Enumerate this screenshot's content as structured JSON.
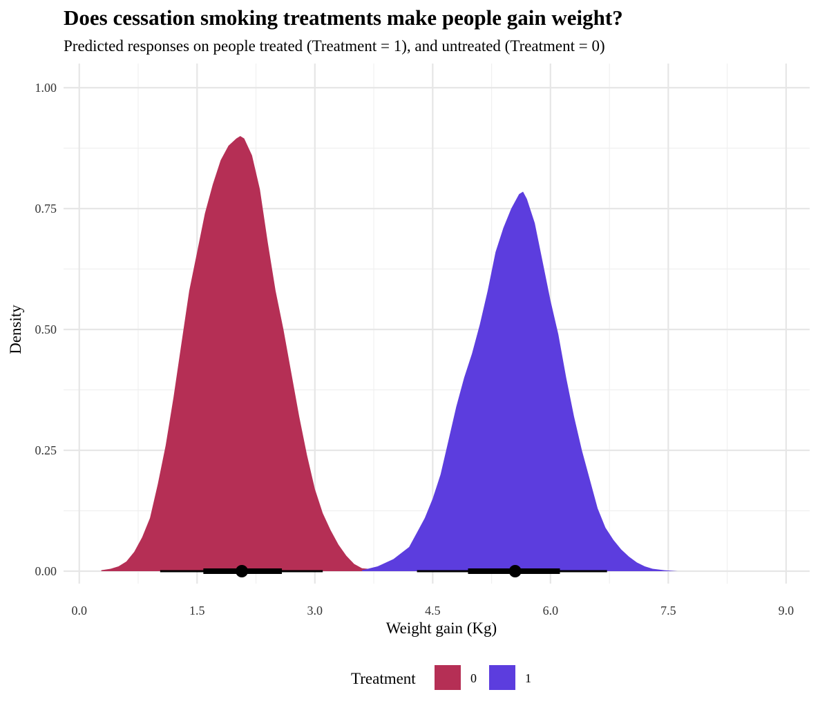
{
  "chart_data": {
    "type": "area",
    "title": "Does cessation smoking treatments make people gain weight?",
    "subtitle": "Predicted responses on people treated (Treatment = 1), and untreated (Treatment = 0)",
    "xlabel": "Weight gain (Kg)",
    "ylabel": "Density",
    "xlim": [
      -0.2,
      9.3
    ],
    "ylim": [
      0,
      1.0
    ],
    "x_ticks": [
      0.0,
      1.5,
      3.0,
      4.5,
      6.0,
      7.5,
      9.0
    ],
    "x_tick_labels": [
      "0.0",
      "1.5",
      "3.0",
      "4.5",
      "6.0",
      "7.5",
      "9.0"
    ],
    "y_ticks": [
      0.0,
      0.25,
      0.5,
      0.75,
      1.0
    ],
    "y_tick_labels": [
      "0.00",
      "0.25",
      "0.50",
      "0.75",
      "1.00"
    ],
    "grid": true,
    "legend": {
      "title": "Treatment",
      "position": "bottom",
      "entries": [
        {
          "label": "0",
          "color": "#B52F55"
        },
        {
          "label": "1",
          "color": "#5C3DDE"
        }
      ]
    },
    "series": [
      {
        "name": "0",
        "color": "#B52F55",
        "points": [
          [
            0.28,
            0.002
          ],
          [
            0.4,
            0.005
          ],
          [
            0.5,
            0.01
          ],
          [
            0.6,
            0.02
          ],
          [
            0.7,
            0.04
          ],
          [
            0.8,
            0.07
          ],
          [
            0.9,
            0.11
          ],
          [
            1.0,
            0.18
          ],
          [
            1.1,
            0.26
          ],
          [
            1.2,
            0.36
          ],
          [
            1.3,
            0.47
          ],
          [
            1.4,
            0.58
          ],
          [
            1.5,
            0.66
          ],
          [
            1.6,
            0.74
          ],
          [
            1.7,
            0.8
          ],
          [
            1.8,
            0.85
          ],
          [
            1.9,
            0.88
          ],
          [
            2.0,
            0.895
          ],
          [
            2.05,
            0.9
          ],
          [
            2.1,
            0.895
          ],
          [
            2.2,
            0.86
          ],
          [
            2.3,
            0.79
          ],
          [
            2.4,
            0.68
          ],
          [
            2.5,
            0.58
          ],
          [
            2.6,
            0.5
          ],
          [
            2.7,
            0.41
          ],
          [
            2.8,
            0.32
          ],
          [
            2.9,
            0.24
          ],
          [
            3.0,
            0.17
          ],
          [
            3.1,
            0.12
          ],
          [
            3.2,
            0.085
          ],
          [
            3.3,
            0.055
          ],
          [
            3.4,
            0.032
          ],
          [
            3.5,
            0.015
          ],
          [
            3.6,
            0.006
          ],
          [
            3.8,
            0.003
          ],
          [
            4.05,
            0.001
          ]
        ],
        "interval": {
          "point": 2.07,
          "inner": [
            1.58,
            2.58
          ],
          "outer": [
            1.03,
            3.1
          ]
        }
      },
      {
        "name": "1",
        "color": "#5C3DDE",
        "points": [
          [
            3.6,
            0.002
          ],
          [
            3.8,
            0.01
          ],
          [
            4.0,
            0.025
          ],
          [
            4.2,
            0.05
          ],
          [
            4.3,
            0.08
          ],
          [
            4.4,
            0.11
          ],
          [
            4.5,
            0.15
          ],
          [
            4.6,
            0.2
          ],
          [
            4.7,
            0.27
          ],
          [
            4.8,
            0.34
          ],
          [
            4.9,
            0.4
          ],
          [
            5.0,
            0.45
          ],
          [
            5.1,
            0.51
          ],
          [
            5.2,
            0.58
          ],
          [
            5.3,
            0.66
          ],
          [
            5.4,
            0.71
          ],
          [
            5.5,
            0.75
          ],
          [
            5.6,
            0.78
          ],
          [
            5.65,
            0.785
          ],
          [
            5.7,
            0.77
          ],
          [
            5.8,
            0.72
          ],
          [
            5.9,
            0.64
          ],
          [
            6.0,
            0.56
          ],
          [
            6.1,
            0.49
          ],
          [
            6.2,
            0.4
          ],
          [
            6.3,
            0.32
          ],
          [
            6.4,
            0.25
          ],
          [
            6.5,
            0.19
          ],
          [
            6.6,
            0.13
          ],
          [
            6.7,
            0.09
          ],
          [
            6.8,
            0.065
          ],
          [
            6.9,
            0.045
          ],
          [
            7.0,
            0.03
          ],
          [
            7.1,
            0.018
          ],
          [
            7.2,
            0.01
          ],
          [
            7.3,
            0.005
          ],
          [
            7.45,
            0.002
          ],
          [
            7.62,
            0.0
          ]
        ],
        "interval": {
          "point": 5.55,
          "inner": [
            4.95,
            6.12
          ],
          "outer": [
            4.3,
            6.72
          ]
        }
      }
    ]
  }
}
